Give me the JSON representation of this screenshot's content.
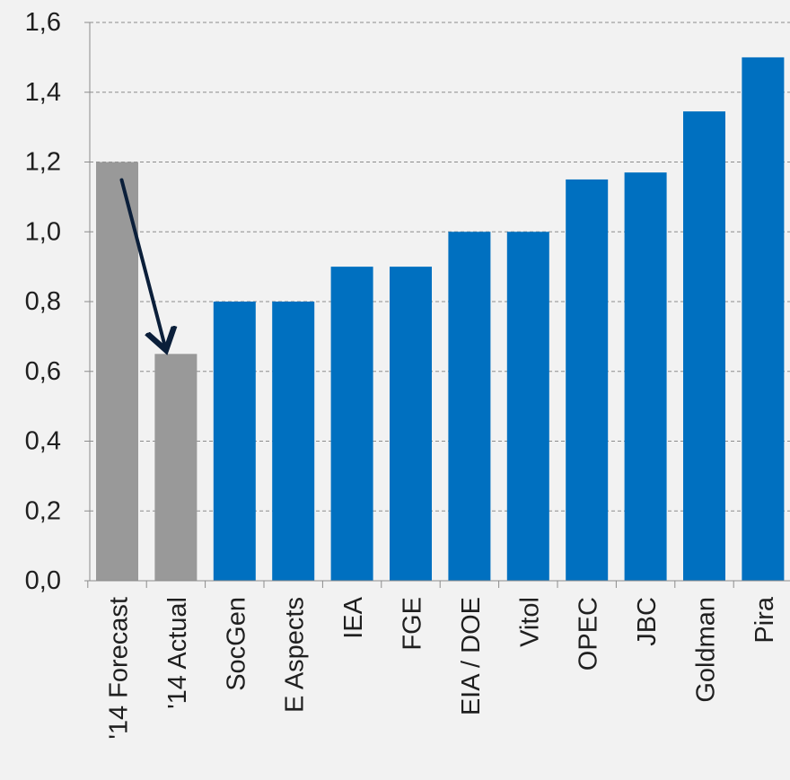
{
  "chart_data": {
    "type": "bar",
    "title": "",
    "xlabel": "",
    "ylabel": "",
    "categories": [
      "'14 Forecast",
      "'14 Actual",
      "SocGen",
      "E Aspects",
      "IEA",
      "FGE",
      "EIA / DOE",
      "Vitol",
      "OPEC",
      "JBC",
      "Goldman",
      "Pira"
    ],
    "values": [
      1.2,
      0.65,
      0.8,
      0.8,
      0.9,
      0.9,
      1.0,
      1.0,
      1.15,
      1.17,
      1.345,
      1.5
    ],
    "bar_colors": [
      "#999999",
      "#999999",
      "#0070c0",
      "#0070c0",
      "#0070c0",
      "#0070c0",
      "#0070c0",
      "#0070c0",
      "#0070c0",
      "#0070c0",
      "#0070c0",
      "#0070c0"
    ],
    "ylim": [
      0,
      1.6
    ],
    "yticks": [
      "0,0",
      "0,2",
      "0,4",
      "0,6",
      "0,8",
      "1,0",
      "1,2",
      "1,4",
      "1,6"
    ],
    "ytick_values": [
      0,
      0.2,
      0.4,
      0.6,
      0.8,
      1.0,
      1.2,
      1.4,
      1.6
    ],
    "grid": true,
    "annotations": [
      {
        "type": "arrow",
        "from": {
          "category": "'14 Forecast",
          "y": 1.2
        },
        "to": {
          "category": "'14 Actual",
          "y": 0.65
        },
        "color": "#0b1f3a"
      }
    ]
  }
}
